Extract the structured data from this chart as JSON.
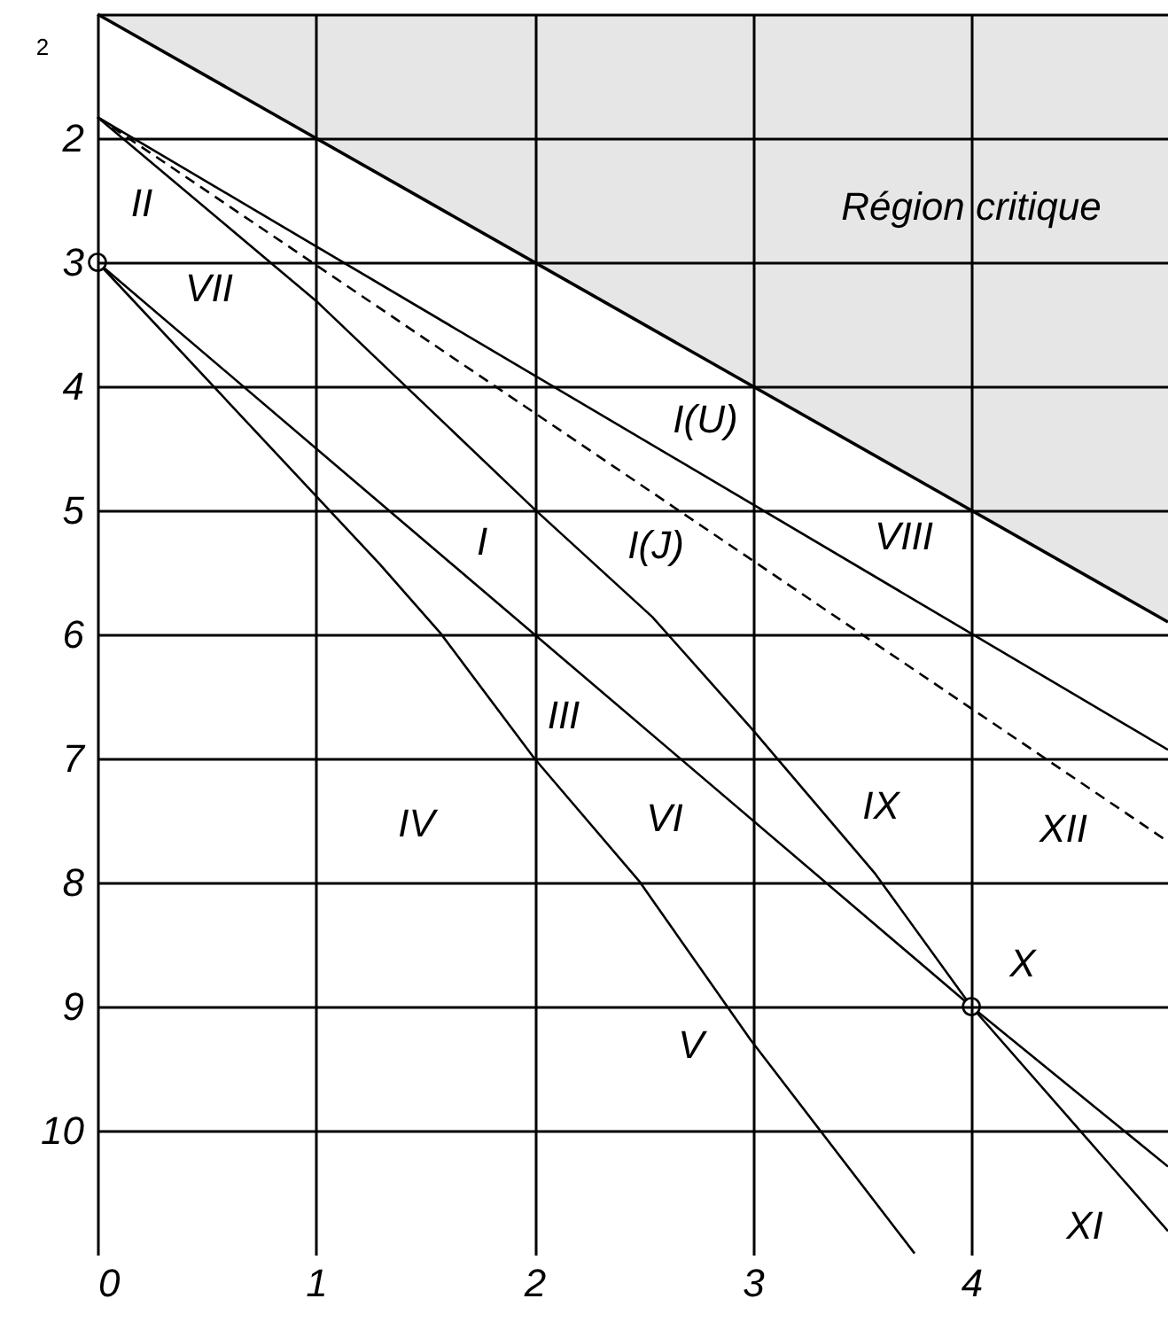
{
  "chart_data": {
    "type": "line",
    "xlim": [
      0,
      4.9
    ],
    "ylim": [
      11,
      1
    ],
    "xticks": [
      0,
      1,
      2,
      3,
      4
    ],
    "yticks": [
      {
        "value": 1,
        "label": null
      },
      2,
      3,
      4,
      5,
      6,
      7,
      8,
      9,
      10
    ],
    "grid": true,
    "series": [
      {
        "type": "area",
        "color": "#e6e6e6",
        "x": [
          0,
          4.9
        ],
        "values": [
          1,
          5.9
        ]
      },
      {
        "color": "#000000",
        "x": [
          0,
          4.9
        ],
        "values": [
          1.83,
          6.93
        ]
      },
      {
        "color": "#000000",
        "line_style": "dashed",
        "x": [
          0,
          4.9
        ],
        "values": [
          1.83,
          7.67
        ]
      },
      {
        "color": "#000000",
        "x": [
          0,
          1,
          2,
          2.54,
          3,
          3.56,
          4,
          4.9
        ],
        "values": [
          1.83,
          3.31,
          4.99,
          5.86,
          6.77,
          7.93,
          9,
          10.81
        ]
      },
      {
        "color": "#000000",
        "x": [
          0,
          2,
          4,
          4.9
        ],
        "values": [
          3,
          6,
          9,
          10.29
        ]
      },
      {
        "color": "#000000",
        "x": [
          0,
          1.29,
          1.57,
          2,
          2.48,
          2.99,
          3.74
        ],
        "values": [
          3,
          5.43,
          5.99,
          7,
          7.99,
          9.27,
          10.99
        ]
      },
      {
        "type": "scatter",
        "color": "#000000",
        "marker": "circle",
        "x": [
          0,
          4
        ],
        "values": [
          3,
          9
        ]
      }
    ],
    "annotations": [
      "2",
      "Région critique",
      "II",
      "VII",
      "I(U)",
      "VIII",
      "I",
      "I(J)",
      "III",
      "IV",
      "VI",
      "IX",
      "XII",
      "X",
      "V",
      "XI"
    ]
  }
}
